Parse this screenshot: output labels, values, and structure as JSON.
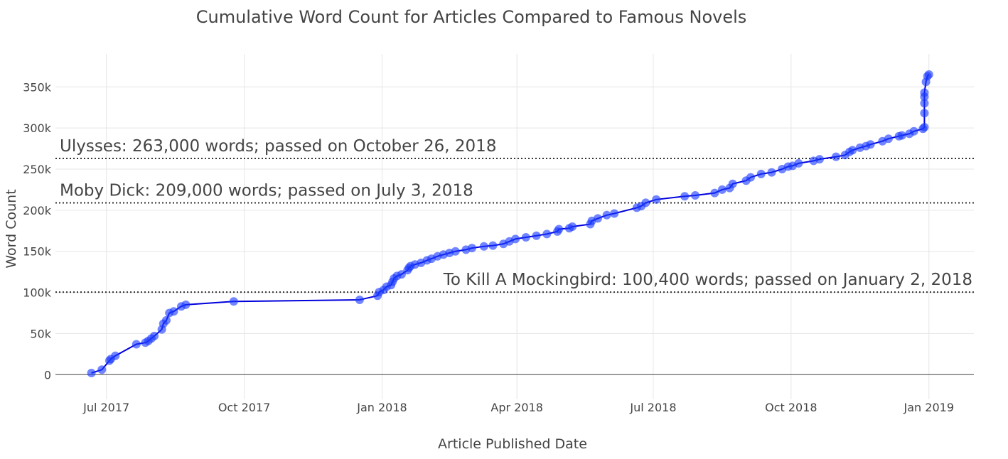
{
  "chart_data": {
    "type": "line",
    "title": "Cumulative Word Count for Articles Compared to Famous Novels",
    "xlabel": "Article Published Date",
    "ylabel": "Word Count",
    "xlim": [
      "2017-05-28",
      "2019-01-31"
    ],
    "ylim": [
      -30000,
      390000
    ],
    "grid": true,
    "line_color": "#0000dd",
    "marker_color": "#1a3aff",
    "x_ticks": [
      {
        "date": "2017-07-01",
        "label": "Jul 2017"
      },
      {
        "date": "2017-10-01",
        "label": "Oct 2017"
      },
      {
        "date": "2018-01-01",
        "label": "Jan 2018"
      },
      {
        "date": "2018-04-01",
        "label": "Apr 2018"
      },
      {
        "date": "2018-07-01",
        "label": "Jul 2018"
      },
      {
        "date": "2018-10-01",
        "label": "Oct 2018"
      },
      {
        "date": "2019-01-01",
        "label": "Jan 2019"
      }
    ],
    "y_ticks": [
      {
        "value": 0,
        "label": "0"
      },
      {
        "value": 50000,
        "label": "50k"
      },
      {
        "value": 100000,
        "label": "100k"
      },
      {
        "value": 150000,
        "label": "150k"
      },
      {
        "value": 200000,
        "label": "200k"
      },
      {
        "value": 250000,
        "label": "250k"
      },
      {
        "value": 300000,
        "label": "300k"
      },
      {
        "value": 350000,
        "label": "350k"
      }
    ],
    "reference_lines": [
      {
        "value": 263000,
        "label": "Ulysses: 263,000 words; passed on October 26, 2018",
        "align": "left"
      },
      {
        "value": 209000,
        "label": "Moby Dick: 209,000 words; passed on July 3, 2018",
        "align": "left"
      },
      {
        "value": 100400,
        "label": "To Kill A Mockingbird: 100,400 words; passed on January 2, 2018",
        "align": "right"
      }
    ],
    "series": [
      {
        "points": [
          [
            "2017-06-21",
            2000
          ],
          [
            "2017-06-28",
            6000
          ],
          [
            "2017-07-03",
            17000
          ],
          [
            "2017-07-04",
            19000
          ],
          [
            "2017-07-07",
            23000
          ],
          [
            "2017-07-21",
            37000
          ],
          [
            "2017-07-27",
            39000
          ],
          [
            "2017-07-29",
            41000
          ],
          [
            "2017-07-31",
            44000
          ],
          [
            "2017-08-02",
            47000
          ],
          [
            "2017-08-07",
            55000
          ],
          [
            "2017-08-08",
            62000
          ],
          [
            "2017-08-10",
            66000
          ],
          [
            "2017-08-12",
            75000
          ],
          [
            "2017-08-15",
            77000
          ],
          [
            "2017-08-20",
            83000
          ],
          [
            "2017-08-23",
            85000
          ],
          [
            "2017-09-24",
            89000
          ],
          [
            "2017-12-17",
            91000
          ],
          [
            "2017-12-29",
            96000
          ],
          [
            "2017-12-30",
            100400
          ],
          [
            "2018-01-02",
            103000
          ],
          [
            "2018-01-04",
            107000
          ],
          [
            "2018-01-07",
            109000
          ],
          [
            "2018-01-08",
            113000
          ],
          [
            "2018-01-09",
            117000
          ],
          [
            "2018-01-11",
            120000
          ],
          [
            "2018-01-14",
            122000
          ],
          [
            "2018-01-18",
            127000
          ],
          [
            "2018-01-19",
            130000
          ],
          [
            "2018-01-20",
            132000
          ],
          [
            "2018-01-23",
            134000
          ],
          [
            "2018-01-27",
            136000
          ],
          [
            "2018-01-31",
            139000
          ],
          [
            "2018-02-03",
            141000
          ],
          [
            "2018-02-07",
            144000
          ],
          [
            "2018-02-11",
            146000
          ],
          [
            "2018-02-15",
            148000
          ],
          [
            "2018-02-19",
            150000
          ],
          [
            "2018-02-26",
            152000
          ],
          [
            "2018-03-02",
            154000
          ],
          [
            "2018-03-10",
            156000
          ],
          [
            "2018-03-16",
            157000
          ],
          [
            "2018-03-23",
            159000
          ],
          [
            "2018-03-27",
            162000
          ],
          [
            "2018-03-31",
            165000
          ],
          [
            "2018-04-07",
            167000
          ],
          [
            "2018-04-14",
            169000
          ],
          [
            "2018-04-21",
            171000
          ],
          [
            "2018-04-28",
            174000
          ],
          [
            "2018-04-29",
            177000
          ],
          [
            "2018-05-06",
            178000
          ],
          [
            "2018-05-08",
            180000
          ],
          [
            "2018-05-20",
            183000
          ],
          [
            "2018-05-21",
            187000
          ],
          [
            "2018-05-25",
            190000
          ],
          [
            "2018-05-31",
            194000
          ],
          [
            "2018-06-05",
            196000
          ],
          [
            "2018-06-20",
            203000
          ],
          [
            "2018-06-23",
            205000
          ],
          [
            "2018-06-26",
            209000
          ],
          [
            "2018-07-03",
            213000
          ],
          [
            "2018-07-22",
            217000
          ],
          [
            "2018-07-29",
            218000
          ],
          [
            "2018-08-11",
            221000
          ],
          [
            "2018-08-16",
            225000
          ],
          [
            "2018-08-21",
            227000
          ],
          [
            "2018-08-23",
            232000
          ],
          [
            "2018-09-01",
            236000
          ],
          [
            "2018-09-04",
            240000
          ],
          [
            "2018-09-11",
            244000
          ],
          [
            "2018-09-18",
            246000
          ],
          [
            "2018-09-25",
            250000
          ],
          [
            "2018-09-29",
            253000
          ],
          [
            "2018-10-02",
            254000
          ],
          [
            "2018-10-06",
            257000
          ],
          [
            "2018-10-16",
            260000
          ],
          [
            "2018-10-20",
            262000
          ],
          [
            "2018-10-31",
            265000
          ],
          [
            "2018-11-06",
            267000
          ],
          [
            "2018-11-09",
            271000
          ],
          [
            "2018-11-11",
            273000
          ],
          [
            "2018-11-16",
            276000
          ],
          [
            "2018-11-20",
            278000
          ],
          [
            "2018-11-23",
            280000
          ],
          [
            "2018-12-01",
            284000
          ],
          [
            "2018-12-05",
            287000
          ],
          [
            "2018-12-12",
            290000
          ],
          [
            "2018-12-14",
            291000
          ],
          [
            "2018-12-19",
            293000
          ],
          [
            "2018-12-22",
            296000
          ],
          [
            "2018-12-28",
            299000
          ],
          [
            "2018-12-29",
            301000
          ],
          [
            "2018-12-29",
            318000
          ],
          [
            "2018-12-29",
            330000
          ],
          [
            "2018-12-29",
            338000
          ],
          [
            "2018-12-29",
            343000
          ],
          [
            "2018-12-30",
            356000
          ],
          [
            "2018-12-31",
            363000
          ],
          [
            "2019-01-01",
            365000
          ]
        ]
      }
    ]
  }
}
